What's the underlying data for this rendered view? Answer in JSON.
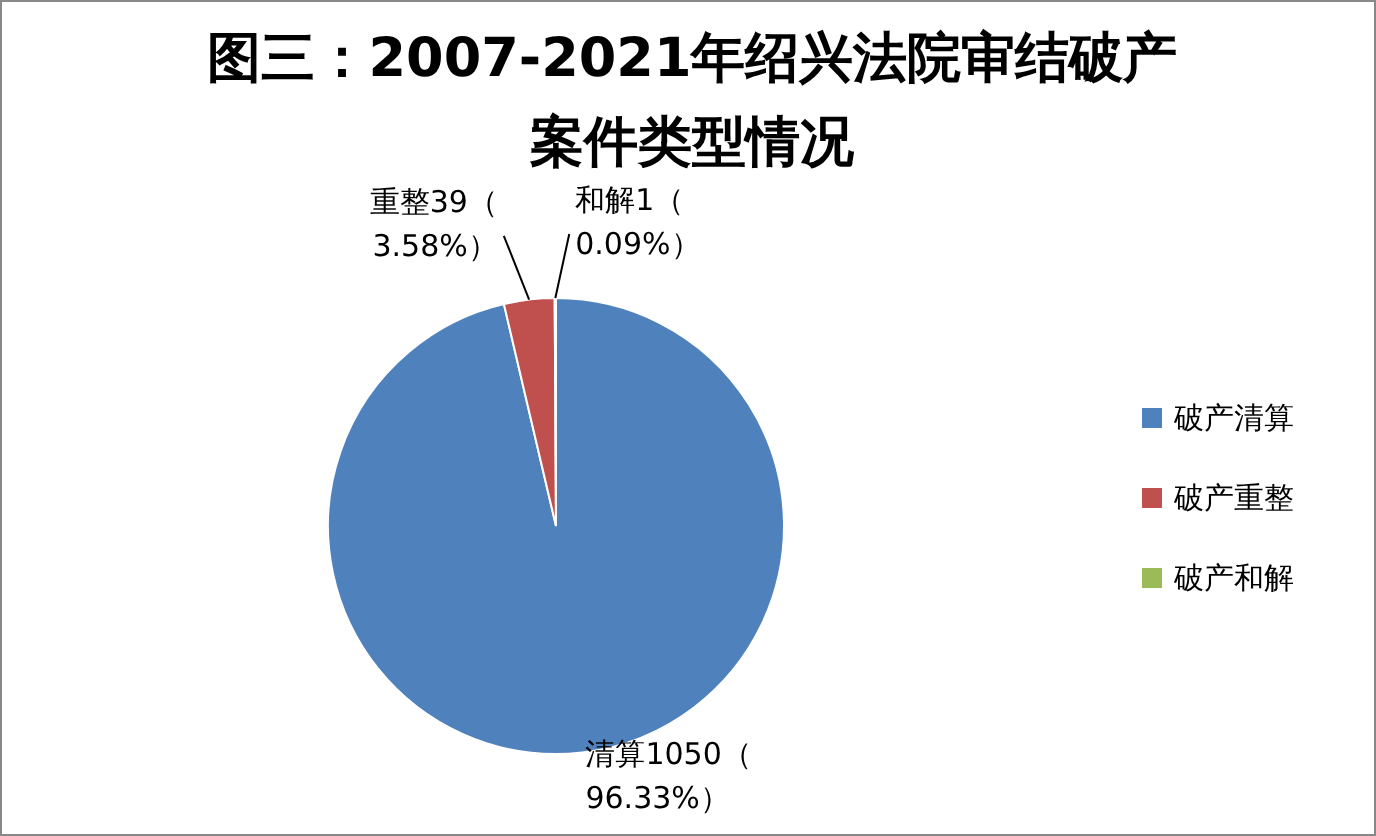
{
  "chart_data": {
    "type": "pie",
    "title": "图三：2007-2021年绍兴法院审结破产案件类型情况",
    "categories": [
      "破产清算",
      "破产重整",
      "破产和解"
    ],
    "values": [
      1050,
      39,
      1
    ],
    "colors": [
      "#4f81bd",
      "#c0504d",
      "#9bbb59"
    ],
    "value_labels": [
      "清算1050（96.33%）",
      "重整39（3.58%）",
      "和解1（0.09%）"
    ],
    "legend": "right"
  }
}
